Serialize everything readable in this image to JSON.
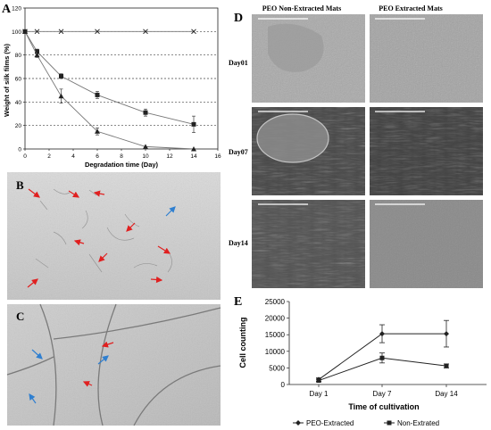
{
  "panels": {
    "A": {
      "letter": "A",
      "chart_data": {
        "type": "line",
        "ylabel": "Weight of silk films (%)",
        "xlabel": "Degradation time (Day)",
        "xlim": [
          0,
          16
        ],
        "ylim": [
          0,
          120
        ],
        "xticks": [
          "0",
          "2",
          "4",
          "6",
          "8",
          "10",
          "12",
          "14",
          "16"
        ],
        "yticks": [
          "0",
          "20",
          "40",
          "60",
          "80",
          "100",
          "120"
        ],
        "grid": "dashed horizontal at 20, 40, 60, 80, 100",
        "series": [
          {
            "marker": "x",
            "x": [
              0,
              1,
              3,
              6,
              10,
              14
            ],
            "y": [
              100,
              100,
              100,
              100,
              100,
              100
            ],
            "err": [
              1,
              1,
              1,
              1,
              1,
              1
            ]
          },
          {
            "marker": "square",
            "x": [
              0,
              1,
              3,
              6,
              10,
              14
            ],
            "y": [
              100,
              83,
              62,
              46,
              31,
              21
            ],
            "err": [
              1,
              2,
              2,
              3,
              3,
              7
            ]
          },
          {
            "marker": "triangle",
            "x": [
              0,
              1,
              3,
              6,
              10,
              14
            ],
            "y": [
              100,
              80,
              45,
              15,
              2,
              0
            ],
            "err": [
              1,
              2,
              6,
              3,
              1,
              1
            ]
          }
        ]
      }
    },
    "B": {
      "letter": "B",
      "arrow_colors": {
        "red": "#e02020",
        "blue": "#2f7fd0"
      }
    },
    "C": {
      "letter": "C"
    },
    "D": {
      "letter": "D",
      "col1": "PEO Non-Extracted Mats",
      "col2": "PEO Extracted Mats",
      "rows": [
        "Day01",
        "Day07",
        "Day14"
      ]
    },
    "E": {
      "letter": "E",
      "chart_data": {
        "type": "line",
        "ylabel": "Cell counting",
        "xlabel": "Time of cultivation",
        "categories": [
          "Day 1",
          "Day 7",
          "Day 14"
        ],
        "ylim": [
          0,
          25000
        ],
        "yticks": [
          "0",
          "5000",
          "10000",
          "15000",
          "20000",
          "25000"
        ],
        "legend_position": "bottom",
        "series": [
          {
            "name": "PEO-Extracted",
            "marker": "diamond",
            "values": [
              1500,
              15300,
              15300
            ],
            "err": [
              500,
              2700,
              4000
            ]
          },
          {
            "name": "Non-Extrated",
            "marker": "square",
            "values": [
              1200,
              8000,
              5600
            ],
            "err": [
              400,
              1500,
              600
            ]
          }
        ]
      }
    }
  }
}
